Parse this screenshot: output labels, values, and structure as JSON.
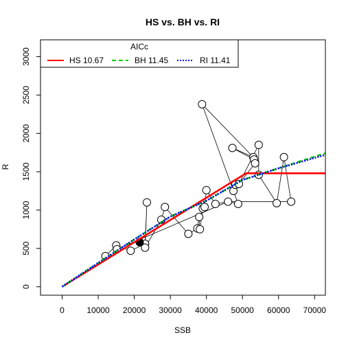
{
  "chart_data": {
    "type": "scatter",
    "title": "HS vs. BH vs. RI",
    "xlabel": "SSB",
    "ylabel": "R",
    "xlim": [
      -6000,
      73000
    ],
    "ylim": [
      -110,
      3220
    ],
    "x_ticks": [
      0,
      10000,
      20000,
      30000,
      40000,
      50000,
      60000,
      70000
    ],
    "y_ticks": [
      0,
      500,
      1000,
      1500,
      2000,
      2500,
      3000
    ],
    "grid": false,
    "legend": {
      "title": "AICc",
      "position": "top-left"
    },
    "observations": {
      "points": [
        [
          12000,
          400
        ],
        [
          15000,
          540
        ],
        [
          15200,
          490
        ],
        [
          19000,
          470
        ],
        [
          23000,
          560
        ],
        [
          23000,
          510
        ],
        [
          23500,
          1100
        ],
        [
          27500,
          875
        ],
        [
          28500,
          1040
        ],
        [
          35000,
          690
        ],
        [
          37500,
          760
        ],
        [
          38000,
          910
        ],
        [
          38200,
          750
        ],
        [
          39000,
          1020
        ],
        [
          39500,
          1040
        ],
        [
          40000,
          1260
        ],
        [
          38800,
          2380
        ],
        [
          42500,
          1080
        ],
        [
          46000,
          1110
        ],
        [
          47500,
          1250
        ],
        [
          48000,
          1330
        ],
        [
          48800,
          1080
        ],
        [
          49000,
          1340
        ],
        [
          47200,
          1810
        ],
        [
          53000,
          1690
        ],
        [
          53200,
          1660
        ],
        [
          53500,
          1610
        ],
        [
          54500,
          1850
        ],
        [
          54500,
          1460
        ],
        [
          59500,
          1090
        ],
        [
          61500,
          1690
        ],
        [
          63500,
          1110
        ]
      ],
      "path_order": [
        0,
        1,
        3,
        4,
        6,
        5,
        7,
        8,
        9,
        10,
        11,
        12,
        13,
        14,
        15,
        17,
        18,
        21,
        16,
        24,
        23,
        25,
        26,
        19,
        20,
        22,
        27,
        28,
        29,
        30,
        31,
        18,
        2
      ],
      "highlight": [
        21500,
        580
      ]
    },
    "series": [
      {
        "name": "HS 10.67",
        "color": "#ff0000",
        "style": "solid",
        "x": [
          0,
          51000,
          73000
        ],
        "y": [
          0,
          1480,
          1480
        ]
      },
      {
        "name": "BH 11.45",
        "color": "#00cd00",
        "style": "dashed",
        "x": [
          0,
          10000,
          20000,
          30000,
          40000,
          50000,
          60000,
          70000,
          73000
        ],
        "y": [
          0,
          312,
          617,
          915,
          1122,
          1392,
          1545,
          1696,
          1740
        ]
      },
      {
        "name": "RI 11.41",
        "color": "#0000ff",
        "style": "dotted",
        "x": [
          0,
          10000,
          20000,
          30000,
          40000,
          50000,
          60000,
          70000,
          73000
        ],
        "y": [
          0,
          312,
          617,
          915,
          1122,
          1392,
          1545,
          1680,
          1720
        ]
      }
    ]
  }
}
